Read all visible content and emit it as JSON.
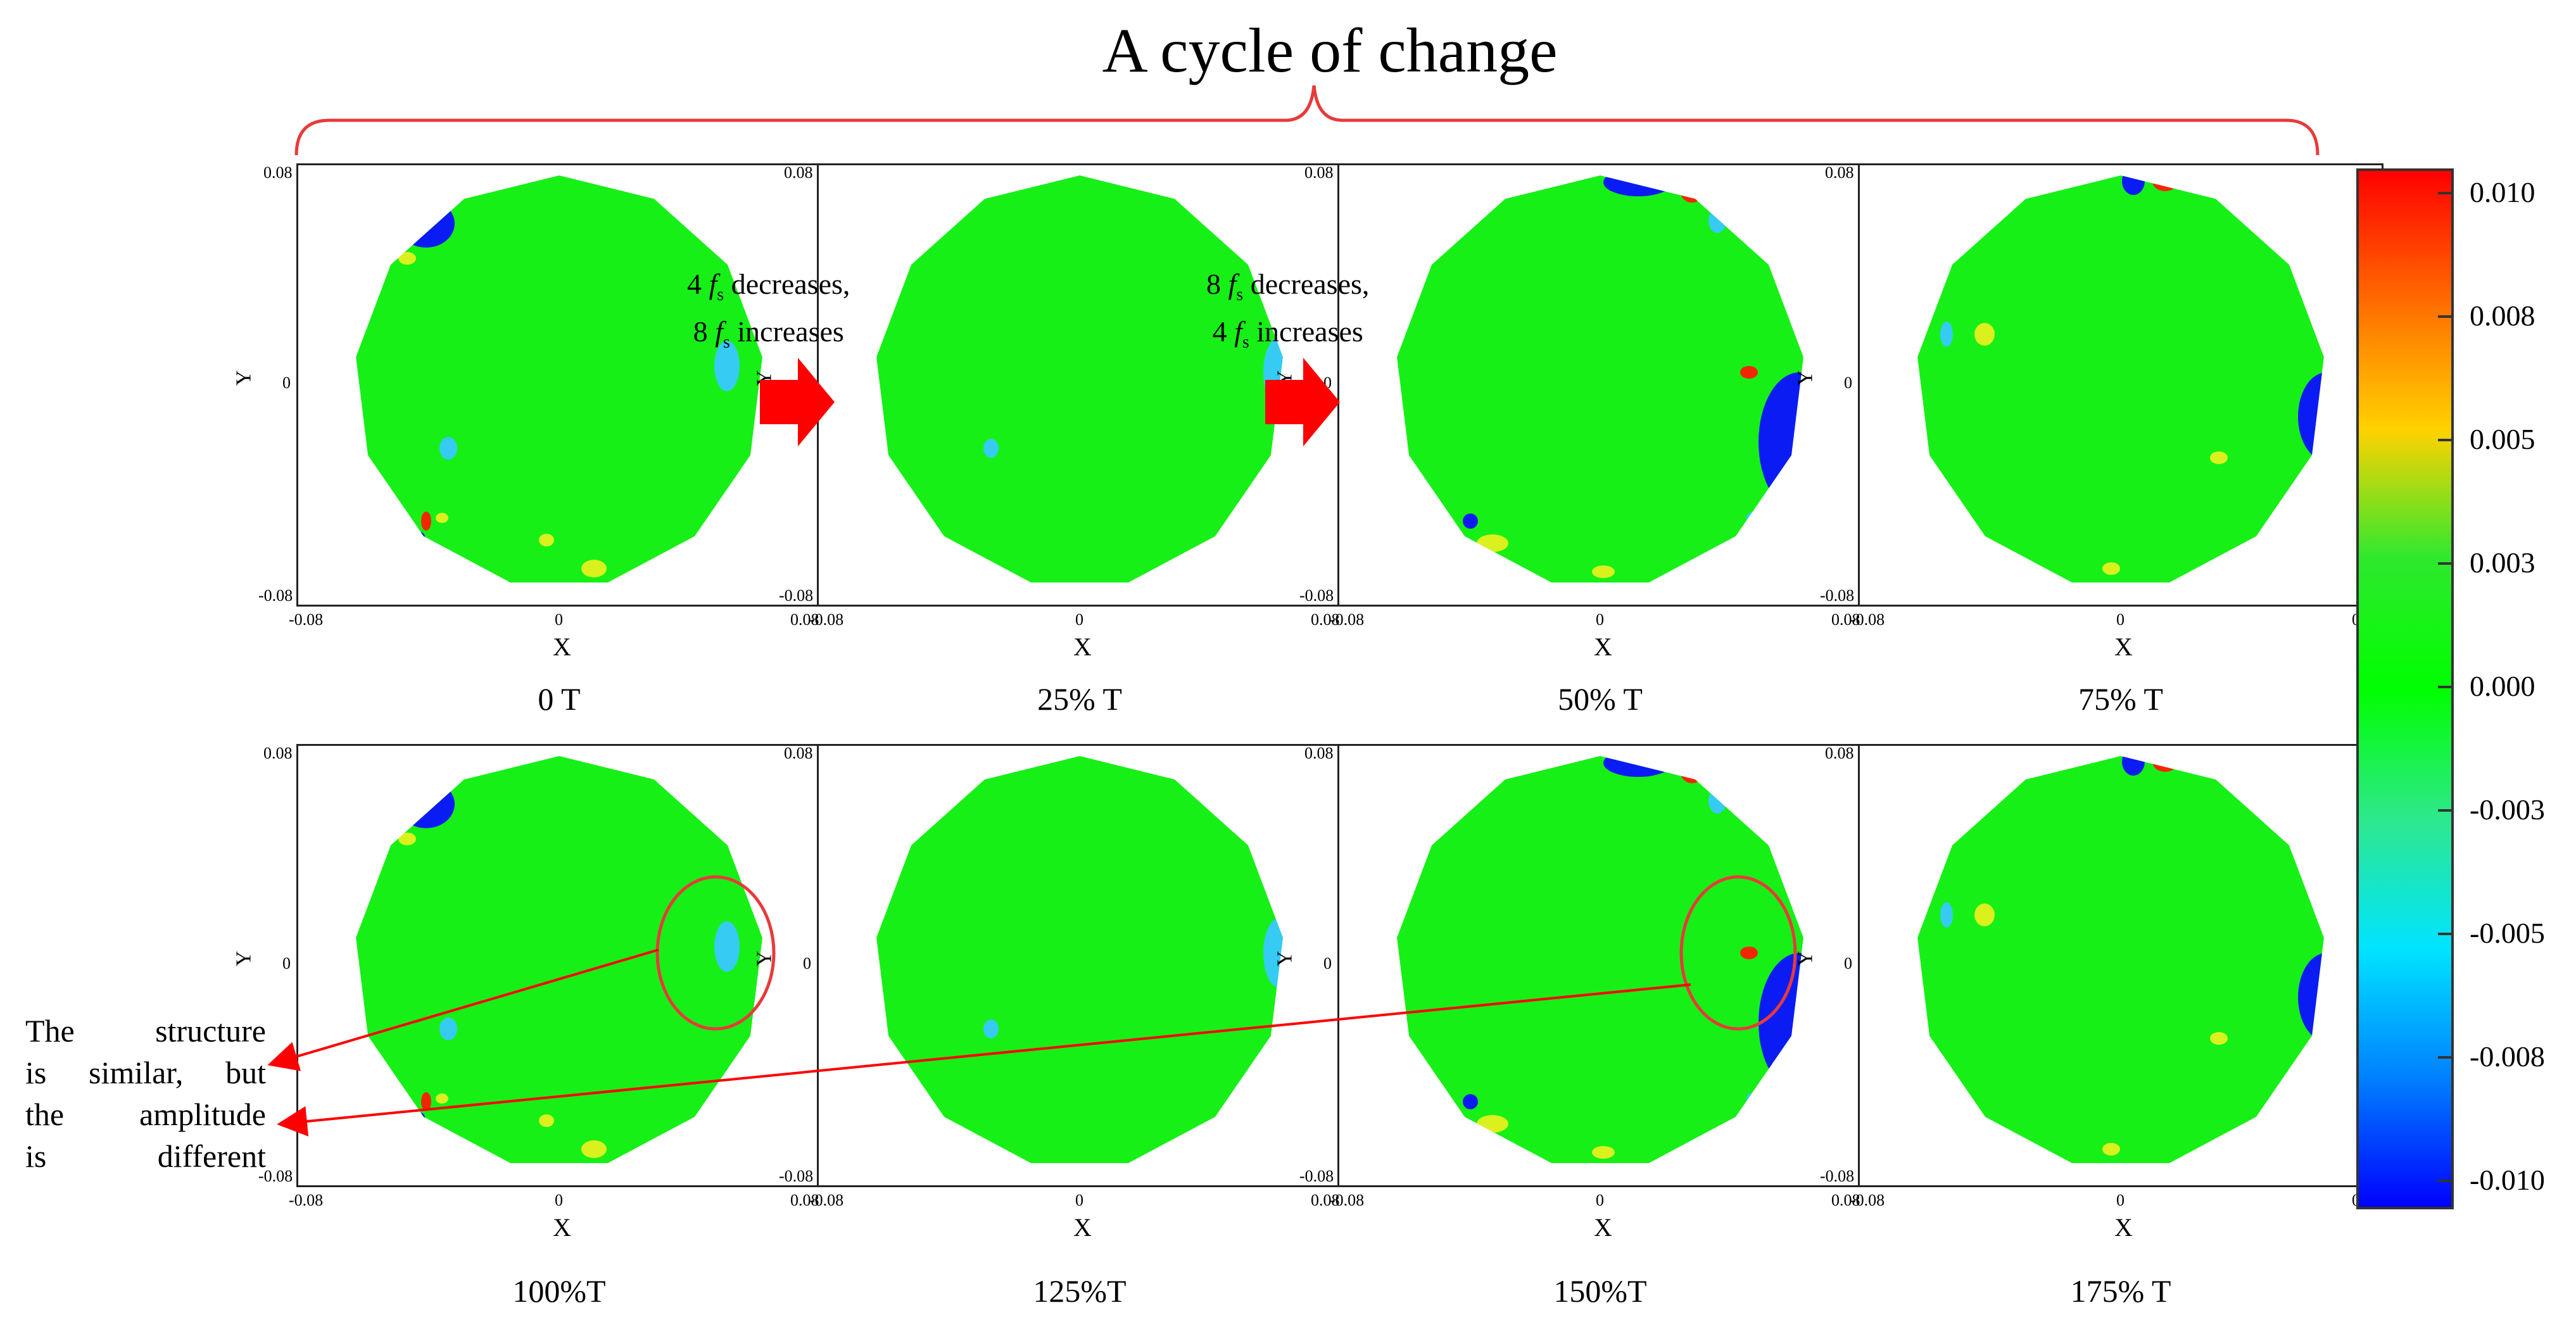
{
  "title": "A cycle of change",
  "transitions": [
    {
      "line1": "decreases,",
      "line2": "increases",
      "n1": "4",
      "n2": "8"
    },
    {
      "line1": "decreases,",
      "line2": "increases",
      "n1": "8",
      "n2": "4"
    }
  ],
  "transition_symbol": "f",
  "transition_subscript": "s",
  "panels": [
    {
      "caption": "0 T",
      "variant": "a"
    },
    {
      "caption": "25% T",
      "variant": "b"
    },
    {
      "caption": "50% T",
      "variant": "c"
    },
    {
      "caption": "75% T",
      "variant": "d"
    },
    {
      "caption": "100%T",
      "variant": "a"
    },
    {
      "caption": "125%T",
      "variant": "b"
    },
    {
      "caption": "150%T",
      "variant": "c"
    },
    {
      "caption": "175% T",
      "variant": "d"
    }
  ],
  "axes": {
    "xlabel": "X",
    "ylabel": "Y",
    "xticks": [
      "-0.08",
      "0",
      "0.08"
    ],
    "yticks": [
      "0.08",
      "0",
      "-0.08"
    ]
  },
  "annotation": {
    "lines": [
      "The structure",
      "is similar, but",
      "the amplitude",
      "is different"
    ]
  },
  "colorbar": {
    "ticks": [
      "0.010",
      "0.008",
      "0.005",
      "0.003",
      "0.000",
      "-0.003",
      "-0.005",
      "-0.008",
      "-0.010"
    ],
    "colors": [
      "#ff0000",
      "#ff6a00",
      "#ffd200",
      "#2ee82e",
      "#00ff00",
      "#2ee88c",
      "#00e4ff",
      "#0080ff",
      "#0000ff"
    ]
  },
  "colors": {
    "field": "#16f016",
    "red": "#ff1a00",
    "blue": "#0a10ff",
    "yellow": "#e6f01e",
    "cyan": "#38c8ff",
    "bracket": "#e83a3a",
    "arrow": "#ff0000"
  }
}
